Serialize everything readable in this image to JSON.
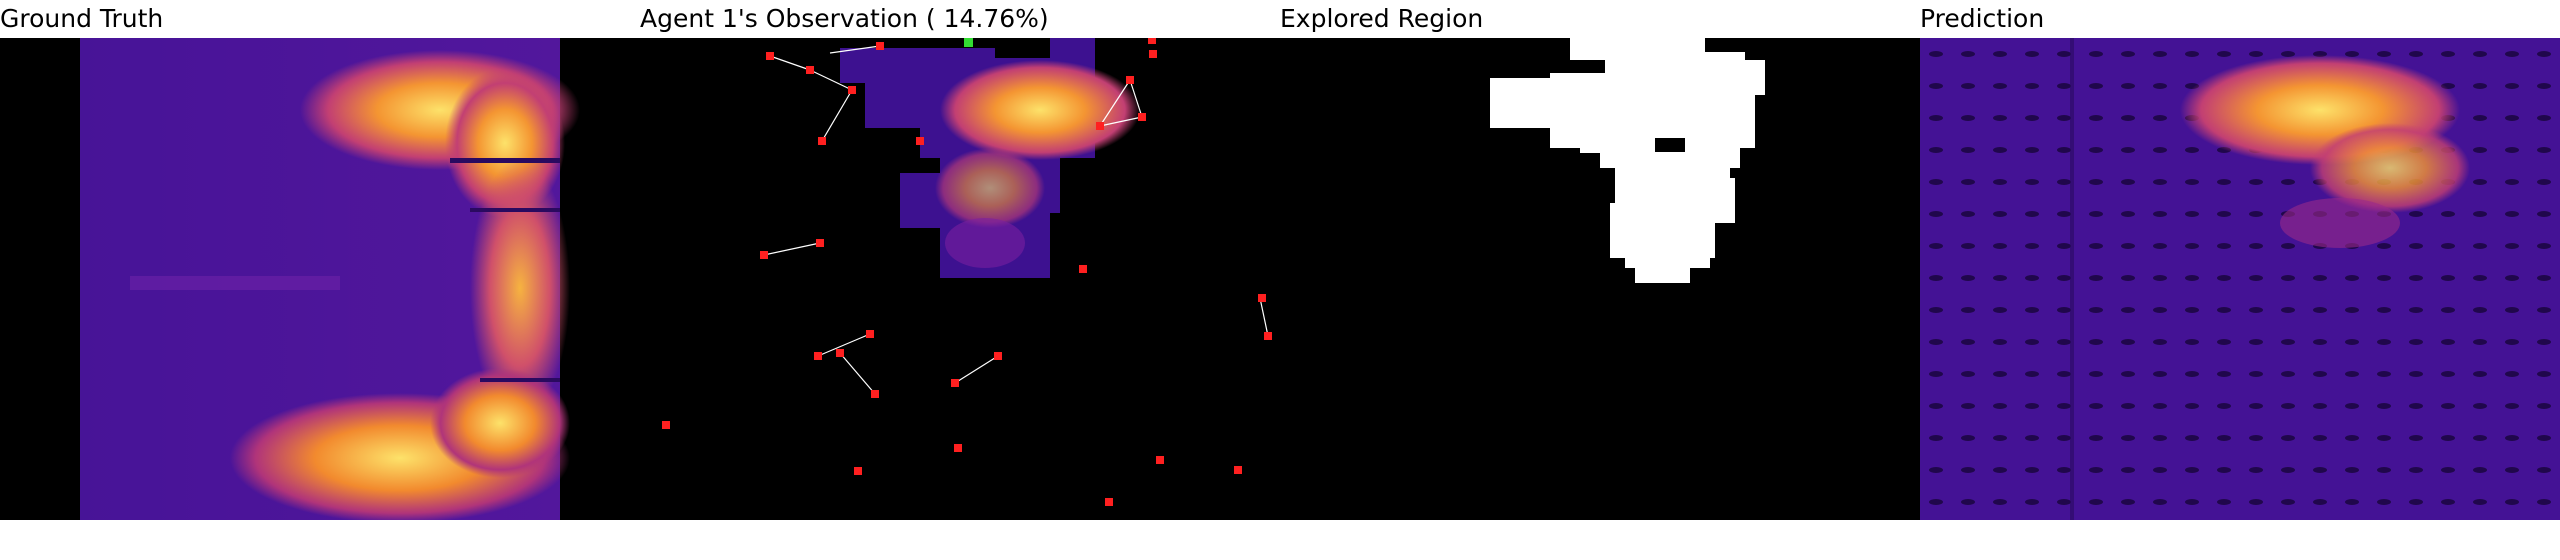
{
  "panels": [
    {
      "name": "ground-truth",
      "title": "Ground Truth"
    },
    {
      "name": "agent-observation",
      "title": "Agent 1's Observation ( 14.76%)"
    },
    {
      "name": "explored-region",
      "title": "Explored Region"
    },
    {
      "name": "prediction",
      "title": "Prediction"
    }
  ],
  "colors": {
    "background": "#000000",
    "field_base": "#3a0f8f",
    "field_mid": "#7a1fa0",
    "heat_low": "#c13b6e",
    "heat_mid": "#f07f2a",
    "heat_high": "#fcd35a",
    "explored": "#ffffff",
    "agent_marker": "#ff2020",
    "active_agent_marker": "#33dd33",
    "link_line": "#ffffff"
  }
}
